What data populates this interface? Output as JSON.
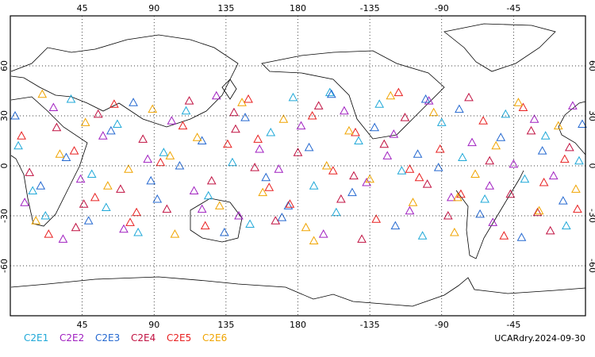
{
  "chart_data": {
    "type": "scatter",
    "marker": "triangle",
    "xlim": [
      0,
      360
    ],
    "ylim": [
      -90,
      90
    ],
    "xticks": [
      45,
      90,
      135,
      180,
      {
        "value": 225,
        "label": "-135"
      },
      {
        "value": 270,
        "label": "-90"
      },
      {
        "value": 315,
        "label": "-45"
      }
    ],
    "yticks": [
      -60,
      -30,
      0,
      30,
      60
    ],
    "grid": true,
    "annotation": "UCARdry.2024-09-30",
    "series": [
      {
        "name": "C2E1",
        "color": "#1fa8d8",
        "lon": [
          5,
          22,
          38,
          51,
          67,
          80,
          96,
          110,
          124,
          139,
          150,
          163,
          177,
          190,
          204,
          218,
          231,
          245,
          258,
          270,
          283,
          297,
          310,
          322,
          335,
          348,
          356,
          14,
          60,
          200
        ],
        "lat": [
          12,
          -30,
          40,
          -5,
          25,
          -40,
          8,
          33,
          -18,
          2,
          -35,
          20,
          41,
          -12,
          -28,
          15,
          37,
          -3,
          -42,
          26,
          5,
          -20,
          31,
          -8,
          18,
          -36,
          3,
          -15,
          -25,
          44
        ]
      },
      {
        "name": "C2E2",
        "color": "#a020c0",
        "lon": [
          9,
          27,
          44,
          58,
          71,
          86,
          101,
          115,
          129,
          143,
          156,
          168,
          182,
          196,
          209,
          223,
          236,
          250,
          262,
          276,
          289,
          302,
          315,
          328,
          340,
          352,
          33,
          120,
          240,
          300
        ],
        "lat": [
          -22,
          35,
          -8,
          18,
          -38,
          4,
          27,
          -15,
          42,
          -30,
          10,
          -2,
          24,
          -41,
          33,
          -10,
          6,
          -27,
          39,
          -19,
          14,
          -34,
          1,
          28,
          -6,
          36,
          -44,
          -26,
          19,
          -12
        ]
      },
      {
        "name": "C2E3",
        "color": "#2468d0",
        "lon": [
          3,
          19,
          35,
          49,
          63,
          77,
          92,
          106,
          120,
          134,
          147,
          160,
          174,
          187,
          201,
          214,
          228,
          241,
          255,
          268,
          281,
          294,
          307,
          320,
          333,
          346,
          358,
          88,
          170,
          260
        ],
        "lat": [
          30,
          -12,
          5,
          -33,
          21,
          38,
          -20,
          0,
          15,
          -40,
          29,
          -7,
          -24,
          11,
          43,
          -16,
          23,
          -36,
          7,
          -1,
          34,
          -29,
          17,
          -43,
          9,
          -21,
          25,
          -9,
          -31,
          40
        ]
      },
      {
        "name": "C2E4",
        "color": "#c01040",
        "lon": [
          12,
          29,
          41,
          55,
          69,
          83,
          98,
          112,
          126,
          141,
          153,
          166,
          180,
          193,
          207,
          220,
          234,
          247,
          261,
          274,
          287,
          300,
          313,
          326,
          338,
          350,
          46,
          140,
          215,
          330
        ],
        "lat": [
          -4,
          23,
          -37,
          31,
          -14,
          16,
          -26,
          39,
          -9,
          22,
          -1,
          -33,
          8,
          36,
          -20,
          -44,
          13,
          29,
          -11,
          -30,
          41,
          3,
          -17,
          21,
          -39,
          11,
          -23,
          32,
          -6,
          -28
        ]
      },
      {
        "name": "C2E5",
        "color": "#e82020",
        "lon": [
          7,
          24,
          40,
          53,
          65,
          79,
          94,
          108,
          122,
          136,
          149,
          162,
          175,
          189,
          202,
          216,
          229,
          243,
          256,
          269,
          282,
          296,
          309,
          321,
          334,
          347,
          75,
          155,
          250,
          355
        ],
        "lat": [
          18,
          -41,
          9,
          -19,
          37,
          -28,
          2,
          24,
          -36,
          13,
          40,
          -13,
          -23,
          30,
          -3,
          20,
          -32,
          44,
          -7,
          10,
          -17,
          27,
          -42,
          35,
          -10,
          4,
          -34,
          16,
          -2,
          -26
        ]
      },
      {
        "name": "C2E6",
        "color": "#f0a400",
        "lon": [
          16,
          31,
          47,
          61,
          74,
          89,
          103,
          117,
          131,
          145,
          158,
          171,
          185,
          198,
          212,
          225,
          238,
          252,
          265,
          278,
          291,
          304,
          318,
          331,
          343,
          354,
          100,
          190,
          280,
          20
        ],
        "lat": [
          -33,
          7,
          26,
          -12,
          -2,
          34,
          -41,
          17,
          -24,
          38,
          -16,
          28,
          -37,
          0,
          21,
          -8,
          42,
          -22,
          32,
          -40,
          -5,
          12,
          38,
          -27,
          24,
          -14,
          6,
          -45,
          -19,
          43
        ]
      }
    ]
  }
}
